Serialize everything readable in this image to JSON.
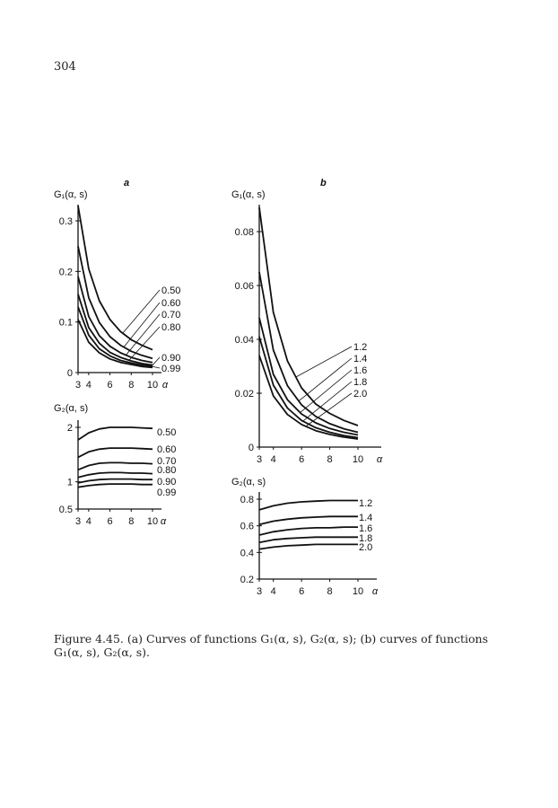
{
  "page_number": "304",
  "caption": "Figure 4.45. (a) Curves of functions G₁(α, s), G₂(α, s); (b) curves of functions G₁(α, s), G₂(α, s).",
  "chart_data": [
    {
      "panel": "a",
      "type": "line",
      "ylabel": "G₁(α, s)",
      "xlabel": "α",
      "xlim": [
        3,
        10
      ],
      "ylim": [
        0,
        0.33
      ],
      "xticks": [
        "3",
        "4",
        "6",
        "8",
        "10"
      ],
      "yticks": [
        "0",
        "0.1",
        "0.2",
        "0.3"
      ],
      "grid": false,
      "x": [
        3,
        4,
        5,
        6,
        7,
        8,
        9,
        10
      ],
      "series": [
        {
          "name": "0.50",
          "values": [
            0.33,
            0.205,
            0.142,
            0.105,
            0.081,
            0.065,
            0.054,
            0.045
          ]
        },
        {
          "name": "0.60",
          "values": [
            0.25,
            0.148,
            0.099,
            0.071,
            0.054,
            0.042,
            0.034,
            0.028
          ]
        },
        {
          "name": "0.70",
          "values": [
            0.19,
            0.111,
            0.073,
            0.052,
            0.039,
            0.03,
            0.024,
            0.02
          ]
        },
        {
          "name": "0.80",
          "values": [
            0.155,
            0.089,
            0.058,
            0.04,
            0.03,
            0.023,
            0.018,
            0.015
          ]
        },
        {
          "name": "0.90",
          "values": [
            0.13,
            0.074,
            0.047,
            0.033,
            0.024,
            0.019,
            0.015,
            0.012
          ]
        },
        {
          "name": "0.99",
          "values": [
            0.105,
            0.06,
            0.039,
            0.027,
            0.02,
            0.016,
            0.012,
            0.01
          ]
        }
      ]
    },
    {
      "panel": "a",
      "type": "line",
      "ylabel": "G₂(α, s)",
      "xlabel": "α",
      "xlim": [
        3,
        10
      ],
      "ylim": [
        0.5,
        2.1
      ],
      "xticks": [
        "3",
        "4",
        "6",
        "8",
        "10"
      ],
      "yticks": [
        "0.5",
        "1",
        "2"
      ],
      "grid": false,
      "x": [
        3,
        4,
        5,
        6,
        7,
        8,
        9,
        10
      ],
      "series": [
        {
          "name": "0.50",
          "values": [
            1.77,
            1.9,
            1.97,
            2.0,
            2.0,
            2.0,
            1.99,
            1.98
          ]
        },
        {
          "name": "0.60",
          "values": [
            1.45,
            1.55,
            1.6,
            1.62,
            1.62,
            1.62,
            1.61,
            1.6
          ]
        },
        {
          "name": "0.70",
          "values": [
            1.22,
            1.3,
            1.34,
            1.35,
            1.35,
            1.34,
            1.34,
            1.33
          ]
        },
        {
          "name": "0.80",
          "values": [
            1.08,
            1.13,
            1.16,
            1.17,
            1.17,
            1.16,
            1.16,
            1.15
          ]
        },
        {
          "name": "0.90",
          "values": [
            0.98,
            1.02,
            1.04,
            1.05,
            1.05,
            1.05,
            1.04,
            1.04
          ]
        },
        {
          "name": "0.99",
          "values": [
            0.9,
            0.93,
            0.95,
            0.96,
            0.96,
            0.96,
            0.95,
            0.95
          ]
        }
      ]
    },
    {
      "panel": "b",
      "type": "line",
      "ylabel": "G₁(α, s)",
      "xlabel": "α",
      "xlim": [
        3,
        10
      ],
      "ylim": [
        0,
        0.09
      ],
      "xticks": [
        "3",
        "4",
        "6",
        "8",
        "10"
      ],
      "yticks": [
        "0",
        "0.02",
        "0.04",
        "0.06",
        "0.08"
      ],
      "grid": false,
      "x": [
        3,
        4,
        5,
        6,
        7,
        8,
        9,
        10
      ],
      "series": [
        {
          "name": "1.2",
          "values": [
            0.089,
            0.05,
            0.032,
            0.022,
            0.016,
            0.0125,
            0.0099,
            0.008
          ]
        },
        {
          "name": "1.4",
          "values": [
            0.065,
            0.036,
            0.0228,
            0.0157,
            0.0114,
            0.0087,
            0.0068,
            0.0055
          ]
        },
        {
          "name": "1.6",
          "values": [
            0.048,
            0.027,
            0.0176,
            0.0123,
            0.009,
            0.0069,
            0.0055,
            0.0045
          ]
        },
        {
          "name": "1.8",
          "values": [
            0.041,
            0.023,
            0.0145,
            0.0099,
            0.0072,
            0.0055,
            0.0043,
            0.0035
          ]
        },
        {
          "name": "2.0",
          "values": [
            0.034,
            0.019,
            0.0121,
            0.0084,
            0.0061,
            0.0047,
            0.0037,
            0.003
          ]
        }
      ]
    },
    {
      "panel": "b",
      "type": "line",
      "ylabel": "G₂(α, s)",
      "xlabel": "α",
      "xlim": [
        3,
        10
      ],
      "ylim": [
        0.2,
        0.85
      ],
      "xticks": [
        "3",
        "4",
        "6",
        "8",
        "10"
      ],
      "yticks": [
        "0.2",
        "0.4",
        "0.6",
        "0.8"
      ],
      "grid": false,
      "x": [
        3,
        4,
        5,
        6,
        7,
        8,
        9,
        10
      ],
      "series": [
        {
          "name": "1.2",
          "values": [
            0.72,
            0.75,
            0.77,
            0.78,
            0.785,
            0.79,
            0.79,
            0.79
          ]
        },
        {
          "name": "1.4",
          "values": [
            0.61,
            0.635,
            0.65,
            0.66,
            0.665,
            0.67,
            0.67,
            0.67
          ]
        },
        {
          "name": "1.6",
          "values": [
            0.53,
            0.555,
            0.57,
            0.58,
            0.585,
            0.585,
            0.59,
            0.59
          ]
        },
        {
          "name": "1.8",
          "values": [
            0.475,
            0.495,
            0.505,
            0.51,
            0.515,
            0.515,
            0.515,
            0.515
          ]
        },
        {
          "name": "2.0",
          "values": [
            0.425,
            0.44,
            0.45,
            0.455,
            0.46,
            0.46,
            0.46,
            0.46
          ]
        }
      ]
    }
  ]
}
